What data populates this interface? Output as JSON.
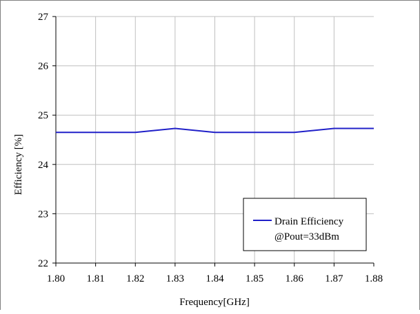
{
  "chart_data": {
    "type": "line",
    "title": "",
    "xlabel": "Frequency[GHz]",
    "ylabel": "Efficiency [%]",
    "xlim": [
      1.8,
      1.88
    ],
    "ylim": [
      22,
      27
    ],
    "x_ticks": [
      "1.80",
      "1.81",
      "1.82",
      "1.83",
      "1.84",
      "1.85",
      "1.86",
      "1.87",
      "1.88"
    ],
    "y_ticks": [
      "22",
      "23",
      "24",
      "25",
      "26",
      "27"
    ],
    "grid": true,
    "legend_position": "bottom-right",
    "series": [
      {
        "name": "Drain Efficiency",
        "legend_line2": "@Pout=33dBm",
        "color": "#1f1fc8",
        "x": [
          1.8,
          1.81,
          1.82,
          1.83,
          1.84,
          1.85,
          1.86,
          1.87,
          1.88
        ],
        "values": [
          24.65,
          24.65,
          24.65,
          24.73,
          24.65,
          24.65,
          24.65,
          24.73,
          24.73
        ]
      }
    ]
  }
}
